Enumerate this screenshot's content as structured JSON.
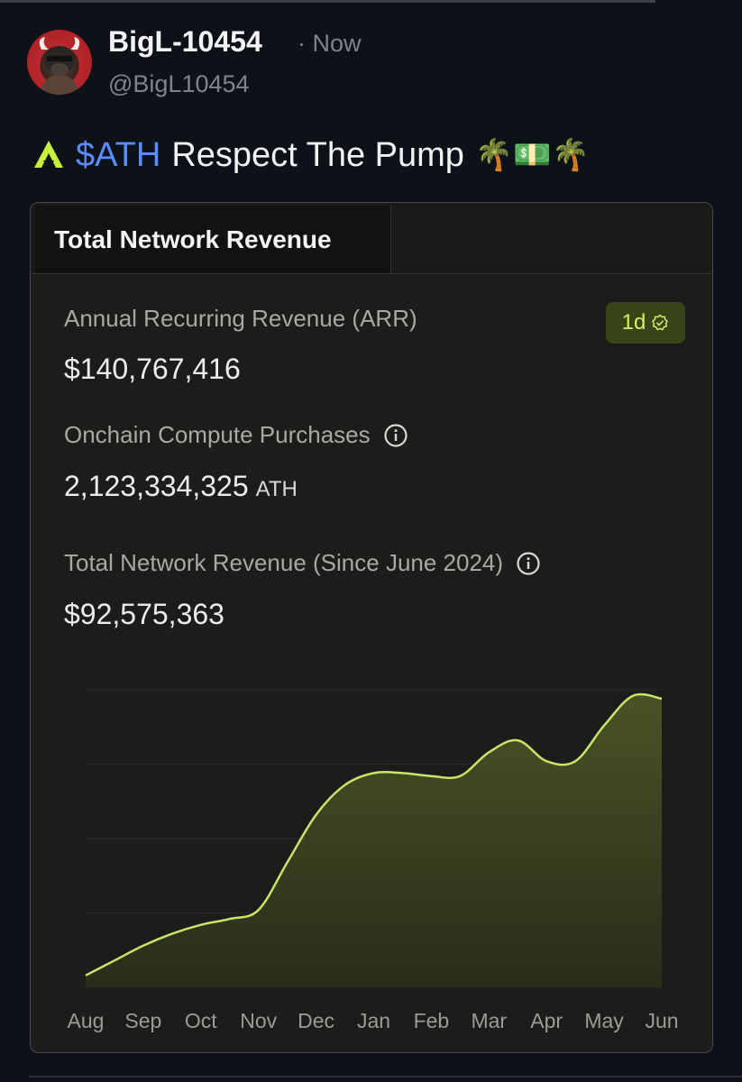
{
  "post": {
    "user_name": "BigL-10454",
    "time": "· Now",
    "handle": "@BigL10454",
    "ticker": "$ATH",
    "text": "Respect The Pump",
    "emoji": "🌴💵🌴"
  },
  "card": {
    "tab_title": "Total Network Revenue",
    "period_badge": "1d",
    "arr_label": "Annual Recurring Revenue (ARR)",
    "arr_value": "$140,767,416",
    "compute_label": "Onchain Compute Purchases",
    "compute_value": "2,123,334,325",
    "compute_unit": "ATH",
    "total_label": "Total Network Revenue (Since June 2024)",
    "total_value": "$92,575,363"
  },
  "colors": {
    "background": "#0d1118",
    "card": "#1c1d1b",
    "accent_line": "#c9e36b",
    "area_fill": "#4c5626",
    "ticker": "#5a8cff"
  },
  "chart_data": {
    "type": "area",
    "categories": [
      "Aug",
      "Sep",
      "Oct",
      "Nov",
      "Dec",
      "Jan",
      "Feb",
      "Mar",
      "Apr",
      "May",
      "Jun"
    ],
    "x": [
      0,
      0.5,
      1,
      1.5,
      2,
      2.5,
      3,
      3.5,
      4,
      4.5,
      5,
      5.5,
      6,
      6.5,
      7,
      7.5,
      8,
      8.5,
      9,
      9.5,
      10
    ],
    "values": [
      4,
      9,
      14,
      18,
      21,
      23,
      26,
      42,
      58,
      68,
      72,
      72,
      71,
      71,
      79,
      83,
      76,
      76,
      88,
      98,
      97
    ],
    "ylim": [
      0,
      100
    ],
    "grid": true,
    "gridlines": [
      0,
      25,
      50,
      75,
      100
    ],
    "title": "",
    "xlabel": "",
    "ylabel": ""
  }
}
